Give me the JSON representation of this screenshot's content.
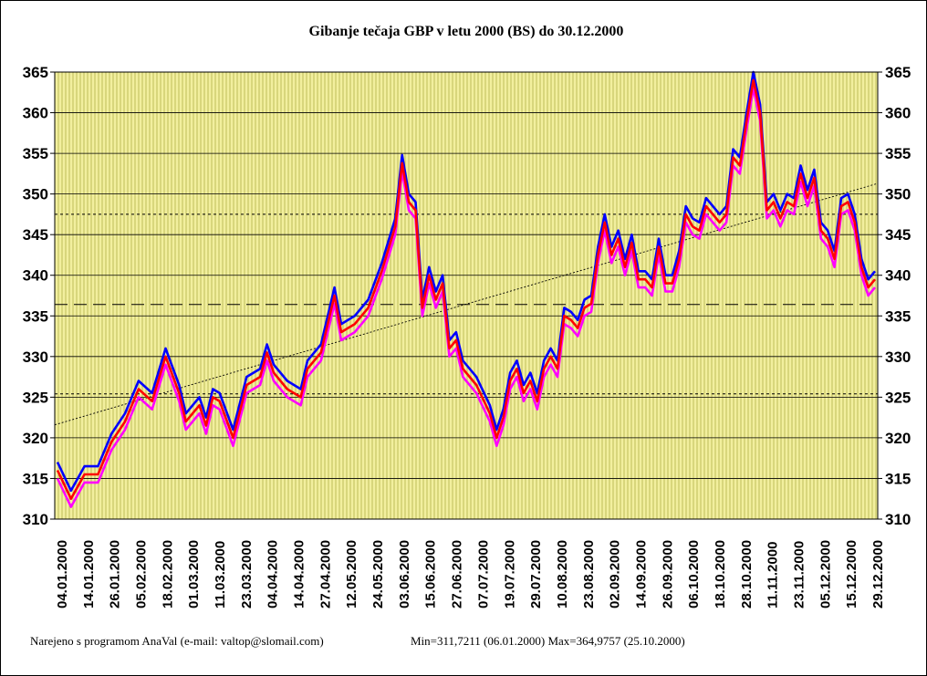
{
  "chart_data": {
    "type": "line",
    "title": "Gibanje tečaja GBP v letu 2000 (BS) do 30.12.2000",
    "footer_credit": "Narejeno s programom AnaVal (e-mail: valtop@slomail.com)",
    "footer_stats": "Min=311,7211 (06.01.2000) Max=364,9757 (25.10.2000)",
    "ylim": [
      310,
      365
    ],
    "y_ticks": [
      "310",
      "315",
      "320",
      "325",
      "330",
      "335",
      "340",
      "345",
      "350",
      "355",
      "360",
      "365"
    ],
    "x_tick_labels": [
      "04.01.2000",
      "14.01.2000",
      "26.01.2000",
      "05.02.2000",
      "18.02.2000",
      "01.03.2000",
      "11.03.2000",
      "23.03.2000",
      "04.04.2000",
      "14.04.2000",
      "27.04.2000",
      "12.05.2000",
      "24.05.2000",
      "03.06.2000",
      "15.06.2000",
      "27.06.2000",
      "07.07.2000",
      "19.07.2000",
      "29.07.2000",
      "10.08.2000",
      "23.08.2000",
      "02.09.2000",
      "14.09.2000",
      "26.09.2000",
      "06.10.2000",
      "18.10.2000",
      "28.10.2000",
      "11.11.2000",
      "23.11.2000",
      "05.12.2000",
      "15.12.2000",
      "29.12.2000"
    ],
    "reference_lines": {
      "average": 336.4,
      "upper_band": 347.5,
      "lower_band": 325.4,
      "trend_start": 321.6,
      "trend_end": 351.3
    },
    "series_offsets": [
      {
        "color": "#0000ff",
        "offset": 1.0
      },
      {
        "color": "#ff00ff",
        "offset": -1.0
      },
      {
        "color": "#ff0000",
        "offset": 0.0
      }
    ],
    "middle_series": [
      [
        0,
        316
      ],
      [
        2,
        312.5
      ],
      [
        4,
        315.5
      ],
      [
        6,
        315.5
      ],
      [
        8,
        319.5
      ],
      [
        10,
        322
      ],
      [
        12,
        326
      ],
      [
        14,
        324.5
      ],
      [
        16,
        330
      ],
      [
        18,
        325.5
      ],
      [
        19,
        322
      ],
      [
        21,
        324
      ],
      [
        22,
        321.5
      ],
      [
        23,
        325
      ],
      [
        24,
        324.5
      ],
      [
        26,
        320
      ],
      [
        28,
        326.5
      ],
      [
        30,
        327.5
      ],
      [
        31,
        330.5
      ],
      [
        32,
        328
      ],
      [
        34,
        326
      ],
      [
        36,
        325
      ],
      [
        37,
        328.5
      ],
      [
        39,
        330.5
      ],
      [
        41,
        337.5
      ],
      [
        42,
        333
      ],
      [
        44,
        334
      ],
      [
        46,
        336
      ],
      [
        48,
        340.5
      ],
      [
        50,
        346
      ],
      [
        51,
        353.8
      ],
      [
        52,
        349
      ],
      [
        53,
        348
      ],
      [
        54,
        336
      ],
      [
        55,
        340
      ],
      [
        56,
        337
      ],
      [
        57,
        339
      ],
      [
        58,
        331
      ],
      [
        59,
        332
      ],
      [
        60,
        328.5
      ],
      [
        62,
        326.5
      ],
      [
        64,
        323
      ],
      [
        65,
        320
      ],
      [
        66,
        322.5
      ],
      [
        67,
        327
      ],
      [
        68,
        328.5
      ],
      [
        69,
        325.5
      ],
      [
        70,
        327
      ],
      [
        71,
        324.5
      ],
      [
        72,
        328.5
      ],
      [
        73,
        330
      ],
      [
        74,
        328.5
      ],
      [
        75,
        335
      ],
      [
        76,
        334.5
      ],
      [
        77,
        333.5
      ],
      [
        78,
        336
      ],
      [
        79,
        336.5
      ],
      [
        80,
        342.5
      ],
      [
        81,
        346.5
      ],
      [
        82,
        342.5
      ],
      [
        83,
        344.5
      ],
      [
        84,
        341
      ],
      [
        85,
        344
      ],
      [
        86,
        339.5
      ],
      [
        87,
        339.5
      ],
      [
        88,
        338.5
      ],
      [
        89,
        343.5
      ],
      [
        90,
        339
      ],
      [
        91,
        339
      ],
      [
        92,
        342
      ],
      [
        93,
        347.5
      ],
      [
        94,
        346
      ],
      [
        95,
        345.5
      ],
      [
        96,
        348.5
      ],
      [
        97,
        347.5
      ],
      [
        98,
        346.5
      ],
      [
        99,
        347.5
      ],
      [
        100,
        354.5
      ],
      [
        101,
        353.5
      ],
      [
        102,
        359
      ],
      [
        103,
        364
      ],
      [
        104,
        360
      ],
      [
        105,
        348
      ],
      [
        106,
        349
      ],
      [
        107,
        347
      ],
      [
        108,
        349
      ],
      [
        109,
        348.5
      ],
      [
        110,
        352.5
      ],
      [
        111,
        349.5
      ],
      [
        112,
        352
      ],
      [
        113,
        345.5
      ],
      [
        114,
        344.5
      ],
      [
        115,
        342
      ],
      [
        116,
        348.5
      ],
      [
        117,
        349
      ],
      [
        118,
        346.5
      ],
      [
        119,
        341
      ],
      [
        120,
        338.5
      ],
      [
        121,
        339.5
      ]
    ]
  }
}
